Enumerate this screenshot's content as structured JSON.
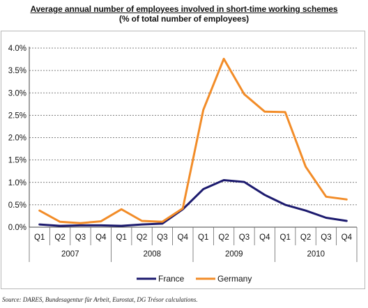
{
  "chart_data": {
    "type": "line",
    "title": "Average annual number of employees involved in short-time working schemes",
    "subtitle": "(% of total number of employees)",
    "quarters": [
      "Q1",
      "Q2",
      "Q3",
      "Q4",
      "Q1",
      "Q2",
      "Q3",
      "Q4",
      "Q1",
      "Q2",
      "Q3",
      "Q4",
      "Q1",
      "Q2",
      "Q3",
      "Q4"
    ],
    "years": [
      "2007",
      "2008",
      "2009",
      "2010"
    ],
    "y_ticks": [
      "0.0%",
      "0.5%",
      "1.0%",
      "1.5%",
      "2.0%",
      "2.5%",
      "3.0%",
      "3.5%",
      "4.0%"
    ],
    "ylim": [
      0,
      4.0
    ],
    "y_step": 0.5,
    "grid": true,
    "legend_position": "bottom",
    "series": [
      {
        "name": "France",
        "color": "#1c1a6e",
        "values": [
          0.06,
          0.03,
          0.04,
          0.04,
          0.03,
          0.06,
          0.08,
          0.4,
          0.85,
          1.05,
          1.01,
          0.72,
          0.5,
          0.37,
          0.21,
          0.14
        ]
      },
      {
        "name": "Germany",
        "color": "#f28c28",
        "values": [
          0.37,
          0.12,
          0.09,
          0.13,
          0.4,
          0.14,
          0.12,
          0.42,
          2.62,
          3.76,
          2.97,
          2.58,
          2.57,
          1.35,
          0.68,
          0.62
        ]
      }
    ]
  },
  "source": "Source: DARES, Bundesagentur für Arbeit, Eurostat, DG Trésor calculations."
}
